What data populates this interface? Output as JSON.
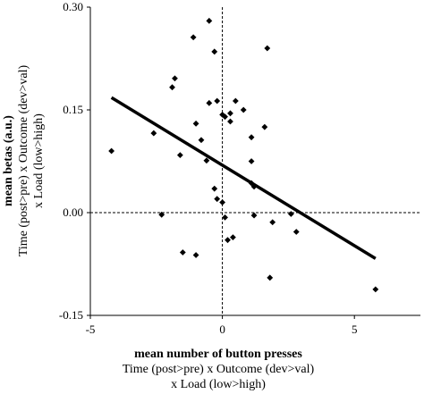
{
  "chart_data": {
    "type": "scatter",
    "xlim": [
      -5,
      7.5
    ],
    "ylim": [
      -0.15,
      0.3
    ],
    "xticks": [
      -5,
      0,
      5
    ],
    "xtick_labels": [
      "-5",
      "0",
      "5"
    ],
    "yticks": [
      -0.15,
      0.0,
      0.15,
      0.3
    ],
    "ytick_labels": [
      "-0.15",
      "0.00",
      "0.15",
      "0.30"
    ],
    "xlabel_lines": [
      "mean number of button presses",
      "Time (post>pre) x Outcome (dev>val)",
      "x Load (low>high)"
    ],
    "ylabel_lines": [
      "mean betas (a.u.)",
      "Time (post>pre) x Outcome (dev>val)",
      "x Load (low>high)"
    ],
    "grid": false,
    "reference_lines": {
      "x": 0,
      "y": 0,
      "style": "dashed"
    },
    "points": [
      {
        "x": -0.5,
        "y": 0.28
      },
      {
        "x": -1.1,
        "y": 0.256
      },
      {
        "x": 1.7,
        "y": 0.24
      },
      {
        "x": -0.3,
        "y": 0.235
      },
      {
        "x": -1.8,
        "y": 0.196
      },
      {
        "x": -1.9,
        "y": 0.183
      },
      {
        "x": 0.5,
        "y": 0.163
      },
      {
        "x": -0.2,
        "y": 0.163
      },
      {
        "x": -0.5,
        "y": 0.16
      },
      {
        "x": 0.8,
        "y": 0.15
      },
      {
        "x": 0.3,
        "y": 0.145
      },
      {
        "x": 0.0,
        "y": 0.143
      },
      {
        "x": 0.1,
        "y": 0.14
      },
      {
        "x": 0.3,
        "y": 0.133
      },
      {
        "x": -1.0,
        "y": 0.13
      },
      {
        "x": 1.6,
        "y": 0.125
      },
      {
        "x": -2.6,
        "y": 0.116
      },
      {
        "x": -0.8,
        "y": 0.106
      },
      {
        "x": 1.1,
        "y": 0.11
      },
      {
        "x": -1.6,
        "y": 0.084
      },
      {
        "x": -4.2,
        "y": 0.09
      },
      {
        "x": -0.6,
        "y": 0.076
      },
      {
        "x": 1.1,
        "y": 0.075
      },
      {
        "x": 1.1,
        "y": 0.043
      },
      {
        "x": 1.2,
        "y": 0.038
      },
      {
        "x": -0.3,
        "y": 0.035
      },
      {
        "x": -0.2,
        "y": 0.02
      },
      {
        "x": 0.0,
        "y": 0.015
      },
      {
        "x": -2.3,
        "y": -0.003
      },
      {
        "x": 1.2,
        "y": -0.004
      },
      {
        "x": 2.6,
        "y": -0.002
      },
      {
        "x": 0.1,
        "y": -0.007
      },
      {
        "x": 1.9,
        "y": -0.014
      },
      {
        "x": 2.8,
        "y": -0.028
      },
      {
        "x": 0.4,
        "y": -0.036
      },
      {
        "x": 0.2,
        "y": -0.04
      },
      {
        "x": -1.5,
        "y": -0.058
      },
      {
        "x": -1.0,
        "y": -0.062
      },
      {
        "x": 1.8,
        "y": -0.095
      },
      {
        "x": 5.8,
        "y": -0.112
      }
    ],
    "fit_line": {
      "x": [
        -4.2,
        5.8
      ],
      "y": [
        0.168,
        -0.067
      ]
    }
  }
}
